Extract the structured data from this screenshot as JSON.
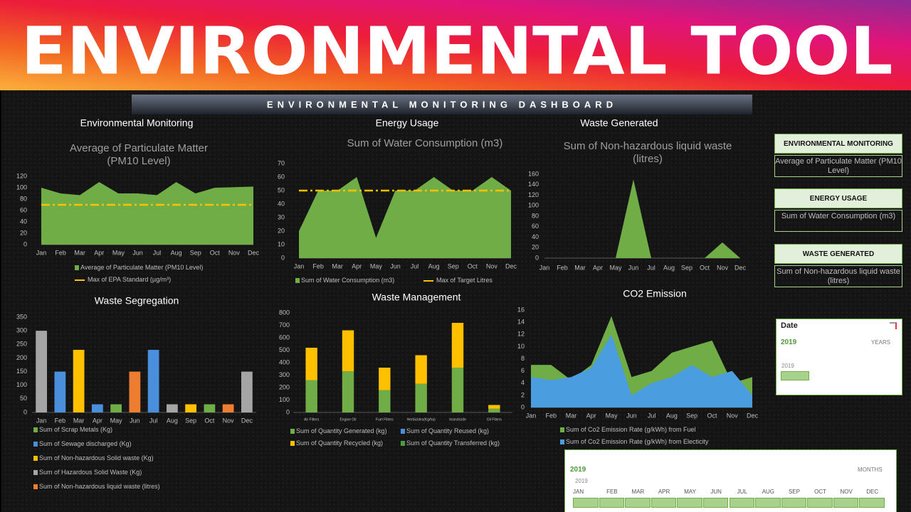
{
  "banner": "ENVIRONMENTAL TOOL",
  "dashboard_title": "ENVIRONMENTAL MONITORING DASHBOARD",
  "chart_data": [
    {
      "type": "area",
      "section": "Environmental Monitoring",
      "title": "Average of Particulate Matter (PM10 Level)",
      "categories": [
        "Jan",
        "Feb",
        "Mar",
        "Apr",
        "May",
        "Jun",
        "Jul",
        "Aug",
        "Sep",
        "Oct",
        "Nov",
        "Dec"
      ],
      "series": [
        {
          "name": "Average of Particulate Matter (PM10 Level)",
          "type": "area",
          "color": "#70ad47",
          "values": [
            100,
            90,
            87,
            110,
            90,
            90,
            87,
            110,
            90,
            100,
            101,
            102
          ]
        },
        {
          "name": "Max of EPA Standard (µg/m³)",
          "type": "line",
          "style": "dashdot",
          "color": "#ffc000",
          "values": [
            70,
            70,
            70,
            70,
            70,
            70,
            70,
            70,
            70,
            70,
            70,
            70
          ]
        }
      ],
      "ylim": [
        0,
        120
      ],
      "yticks": [
        0,
        20,
        40,
        60,
        80,
        100,
        120
      ]
    },
    {
      "type": "area",
      "section": "Energy Usage",
      "title": "Sum of Water Consumption (m3)",
      "categories": [
        "Jan",
        "Feb",
        "Mar",
        "Apr",
        "May",
        "Jun",
        "Jul",
        "Aug",
        "Sep",
        "Oct",
        "Nov",
        "Dec"
      ],
      "series": [
        {
          "name": "Sum of Water Consumption (m3)",
          "type": "area",
          "color": "#70ad47",
          "values": [
            20,
            50,
            50,
            60,
            15,
            50,
            50,
            60,
            50,
            50,
            60,
            50
          ]
        },
        {
          "name": "Max of Target Litres",
          "type": "line",
          "style": "dashdot",
          "color": "#ffc000",
          "values": [
            50,
            50,
            50,
            50,
            50,
            50,
            50,
            50,
            50,
            50,
            50,
            50
          ]
        }
      ],
      "ylim": [
        0,
        70
      ],
      "yticks": [
        0,
        10,
        20,
        30,
        40,
        50,
        60,
        70
      ]
    },
    {
      "type": "area",
      "section": "Waste Generated",
      "title": "Sum of Non-hazardous liquid waste (litres)",
      "categories": [
        "Jan",
        "Feb",
        "Mar",
        "Apr",
        "May",
        "Jun",
        "Jul",
        "Aug",
        "Sep",
        "Oct",
        "Nov",
        "Dec"
      ],
      "values": [
        0,
        0,
        0,
        0,
        0,
        150,
        0,
        0,
        0,
        0,
        30,
        0
      ],
      "color": "#70ad47",
      "ylim": [
        0,
        160
      ],
      "yticks": [
        0,
        20,
        40,
        60,
        80,
        100,
        120,
        140,
        160
      ]
    },
    {
      "type": "bar",
      "title": "Waste Segregation",
      "categories": [
        "Jan",
        "Feb",
        "Mar",
        "Apr",
        "May",
        "Jun",
        "Jul",
        "Aug",
        "Sep",
        "Oct",
        "Nov",
        "Dec"
      ],
      "series": [
        {
          "name": "Sum of Scrap Metals (Kg)",
          "color": "#70ad47",
          "values": [
            null,
            null,
            null,
            null,
            30,
            null,
            null,
            null,
            null,
            30,
            null,
            null
          ]
        },
        {
          "name": "Sum of Sewage discharged (Kg)",
          "color": "#4a8fdc",
          "values": [
            null,
            150,
            null,
            30,
            null,
            null,
            230,
            null,
            null,
            null,
            null,
            null
          ]
        },
        {
          "name": "Sum of Non-hazardous Solid waste (Kg)",
          "color": "#ffc000",
          "values": [
            null,
            null,
            230,
            null,
            null,
            null,
            null,
            null,
            30,
            null,
            null,
            null
          ]
        },
        {
          "name": "Sum of Hazardous Solid Waste (Kg)",
          "color": "#a5a5a5",
          "values": [
            300,
            null,
            null,
            null,
            null,
            null,
            null,
            30,
            null,
            null,
            null,
            150
          ]
        },
        {
          "name": "Sum of Non-hazardous liquid waste (litres)",
          "color": "#ed7d31",
          "values": [
            null,
            null,
            null,
            null,
            null,
            150,
            null,
            null,
            null,
            null,
            30,
            null
          ]
        }
      ],
      "ylim": [
        0,
        350
      ],
      "yticks": [
        0,
        50,
        100,
        150,
        200,
        250,
        300,
        350
      ]
    },
    {
      "type": "stacked_bar",
      "title": "Waste Management",
      "categories": [
        "Air Filters",
        "Engine Oil",
        "Fuel Filters",
        "Herbicides(Kg/ha)",
        "Insecticide",
        "Oil Filters"
      ],
      "series": [
        {
          "name": "Sum of Quantity Generated (kg)",
          "color": "#70ad47",
          "values": [
            260,
            330,
            180,
            230,
            360,
            30
          ]
        },
        {
          "name": "Sum of Quantity Reused (kg)",
          "color": "#4a8fdc",
          "values": [
            0,
            0,
            0,
            0,
            0,
            0
          ]
        },
        {
          "name": "Sum of Quantity Recycled (kg)",
          "color": "#ffc000",
          "values": [
            260,
            330,
            180,
            230,
            360,
            30
          ]
        },
        {
          "name": "Sum of Quantity Transferred (kg)",
          "color": "#4f9a3a",
          "values": [
            0,
            0,
            0,
            0,
            0,
            0
          ]
        }
      ],
      "ylim": [
        0,
        800
      ],
      "yticks": [
        0,
        100,
        200,
        300,
        400,
        500,
        600,
        700,
        800
      ]
    },
    {
      "type": "area",
      "title": "CO2 Emission",
      "categories": [
        "Jan",
        "Feb",
        "Mar",
        "Apr",
        "May",
        "Jun",
        "Jul",
        "Aug",
        "Sep",
        "Oct",
        "Nov",
        "Dec"
      ],
      "series": [
        {
          "name": "Sum of Co2 Emission Rate (g/kWh) from Fuel",
          "type": "area",
          "color": "#70ad47",
          "values": [
            7,
            7,
            4.5,
            7,
            15,
            5,
            6,
            9,
            10,
            11,
            4,
            5
          ]
        },
        {
          "name": "Sum of Co2 Emission Rate (g/kWh) from Electicity",
          "type": "area",
          "color": "#4a9ee0",
          "values": [
            5,
            4.5,
            5,
            6.5,
            12,
            2,
            4,
            5,
            7,
            5,
            6,
            2
          ]
        }
      ],
      "ylim": [
        0,
        16
      ],
      "yticks": [
        0,
        2,
        4,
        6,
        8,
        10,
        12,
        14,
        16
      ]
    }
  ],
  "cards": [
    {
      "heading": "ENVIRONMENTAL MONITORING",
      "value": "Average of Particulate Matter (PM10 Level)"
    },
    {
      "heading": "ENERGY USAGE",
      "value": "Sum of Water Consumption (m3)"
    },
    {
      "heading": "WASTE GENERATED",
      "value": "Sum of Non-hazardous liquid waste (litres)"
    }
  ],
  "date_slicer": {
    "title": "Date",
    "selection": "2019",
    "level": "YEARS",
    "items": [
      "2019"
    ]
  },
  "month_slicer": {
    "selection": "2019",
    "level": "MONTHS",
    "year_label": "2019",
    "months": [
      "JAN",
      "FEB",
      "MAR",
      "APR",
      "MAY",
      "JUN",
      "JUL",
      "AUG",
      "SEP",
      "OCT",
      "NOV",
      "DEC"
    ]
  }
}
